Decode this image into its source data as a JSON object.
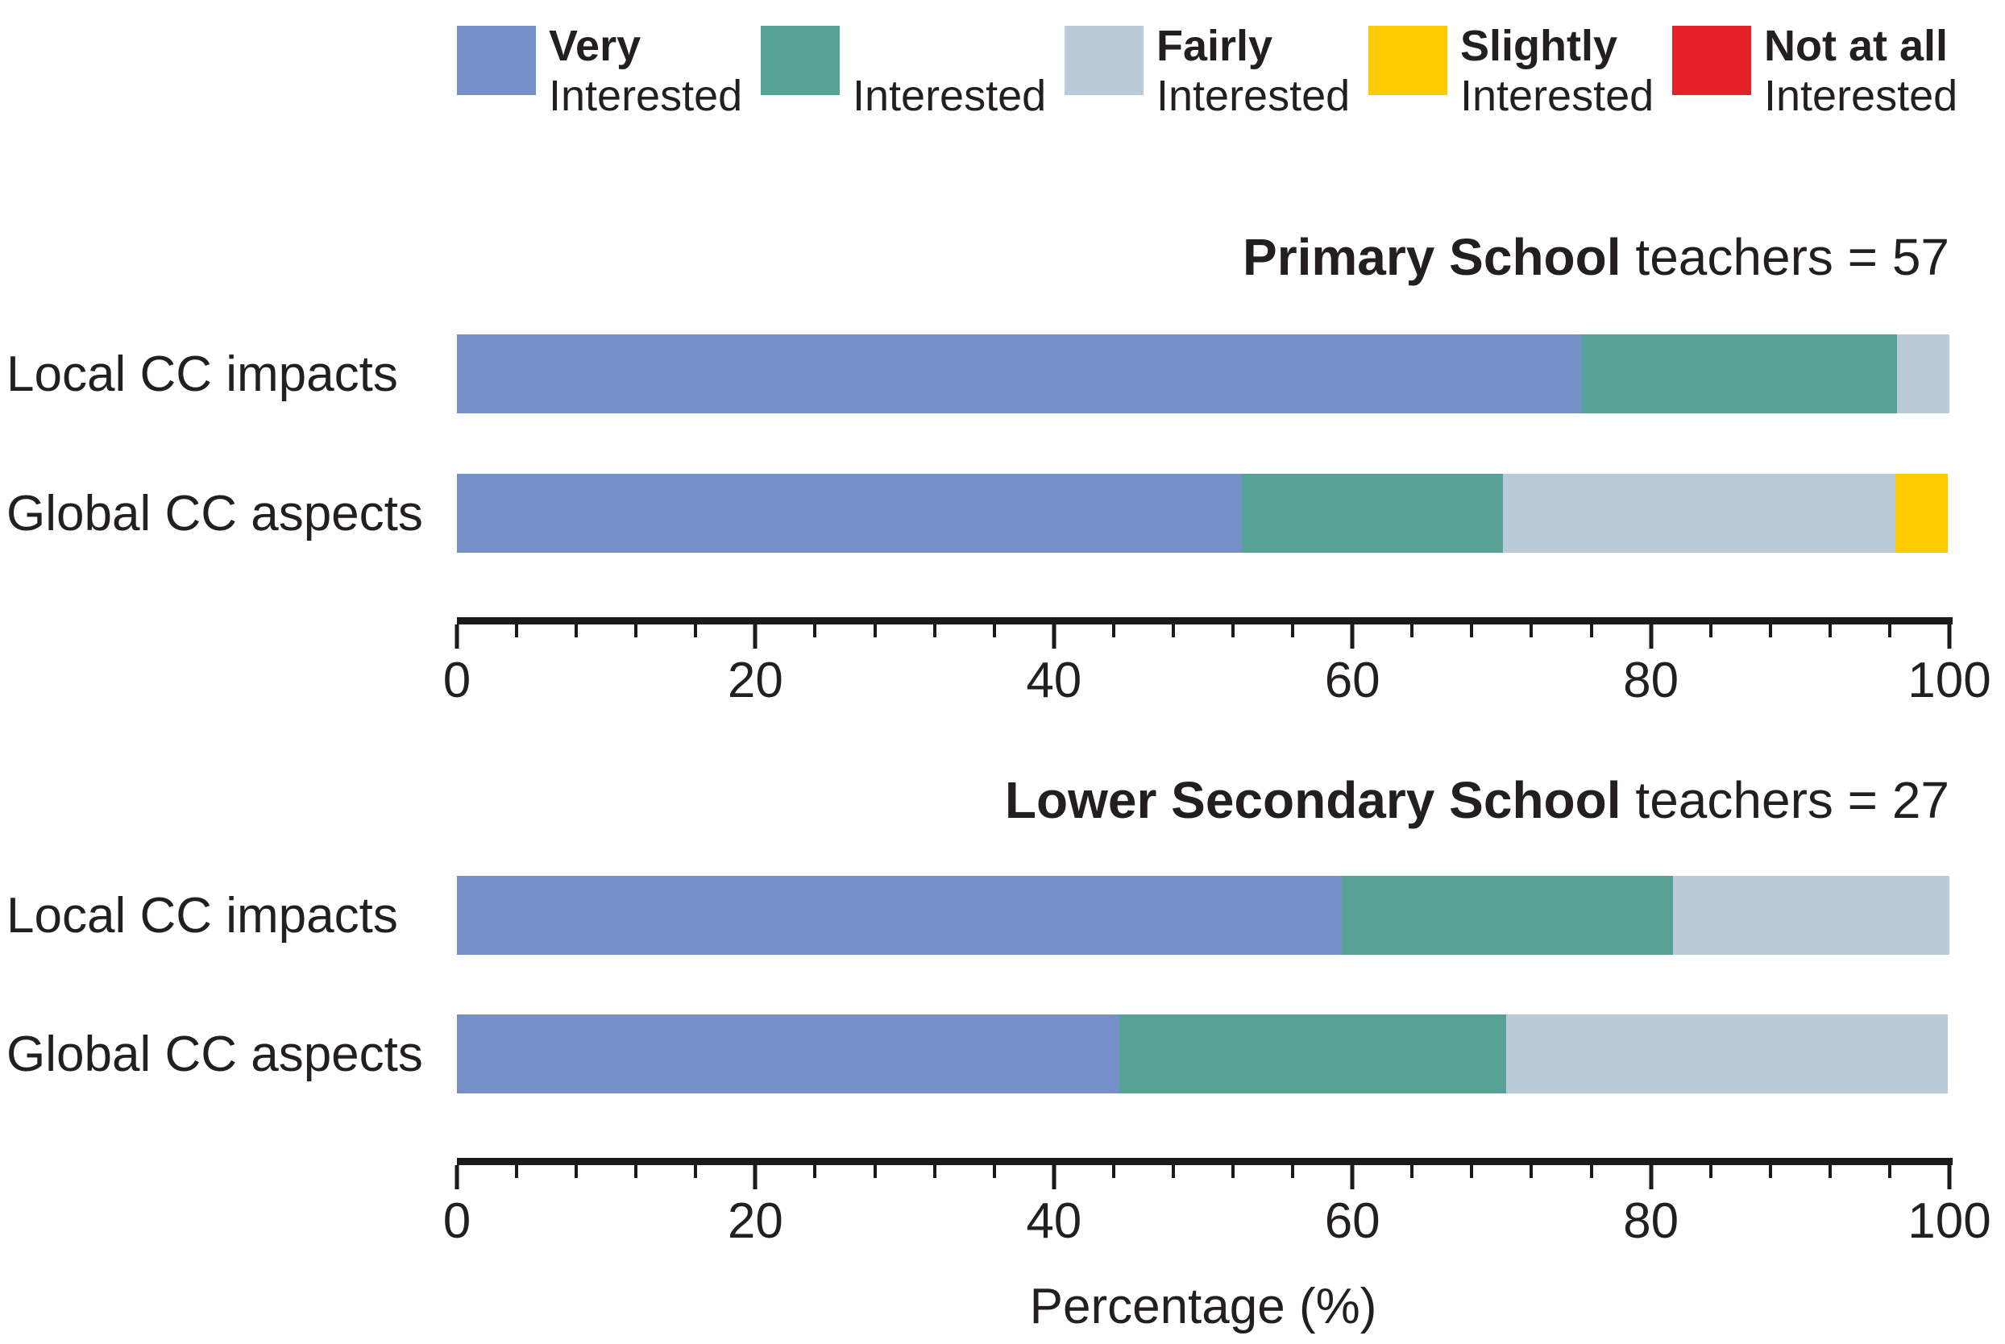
{
  "legend": {
    "items": [
      {
        "line1": "Very",
        "line2": "Interested",
        "color": "#7590c6",
        "name": "very-interested"
      },
      {
        "line1": "",
        "line2": "Interested",
        "color": "#58a295",
        "name": "interested"
      },
      {
        "line1": "Fairly",
        "line2": "Interested",
        "color": "#b9cad9",
        "name": "fairly-interested"
      },
      {
        "line1": "Slightly",
        "line2": "Interested",
        "color": "#ffcb00",
        "name": "slightly-interested"
      },
      {
        "line1": "Not at all",
        "line2": "Interested",
        "color": "#e32127",
        "name": "not-at-all-interested"
      }
    ]
  },
  "axis": {
    "major_ticks": [
      0,
      20,
      40,
      60,
      80,
      100
    ],
    "minor_step": 4,
    "max": 100,
    "xlabel": "Percentage (%)"
  },
  "chart_data": [
    {
      "type": "bar",
      "stacked": true,
      "orientation": "horizontal",
      "title_bold": "Primary School",
      "title_regular": "teachers = 57",
      "categories": [
        "Local CC impacts",
        "Global CC aspects"
      ],
      "series": [
        {
          "name": "Very Interested",
          "values": [
            75.4,
            52.6
          ]
        },
        {
          "name": "Interested",
          "values": [
            21.1,
            17.5
          ]
        },
        {
          "name": "Fairly Interested",
          "values": [
            3.5,
            26.3
          ]
        },
        {
          "name": "Slightly Interested",
          "values": [
            0,
            3.5
          ]
        },
        {
          "name": "Not at all Interested",
          "values": [
            0,
            0
          ]
        }
      ],
      "xlim": [
        0,
        100
      ],
      "xlabel": "Percentage (%)"
    },
    {
      "type": "bar",
      "stacked": true,
      "orientation": "horizontal",
      "title_bold": "Lower Secondary School",
      "title_regular": "teachers = 27",
      "categories": [
        "Local CC impacts",
        "Global CC aspects"
      ],
      "series": [
        {
          "name": "Very Interested",
          "values": [
            59.3,
            44.4
          ]
        },
        {
          "name": "Interested",
          "values": [
            22.2,
            25.9
          ]
        },
        {
          "name": "Fairly Interested",
          "values": [
            18.5,
            29.6
          ]
        },
        {
          "name": "Slightly Interested",
          "values": [
            0,
            0
          ]
        },
        {
          "name": "Not at all Interested",
          "values": [
            0,
            0
          ]
        }
      ],
      "xlim": [
        0,
        100
      ],
      "xlabel": "Percentage (%)"
    }
  ]
}
